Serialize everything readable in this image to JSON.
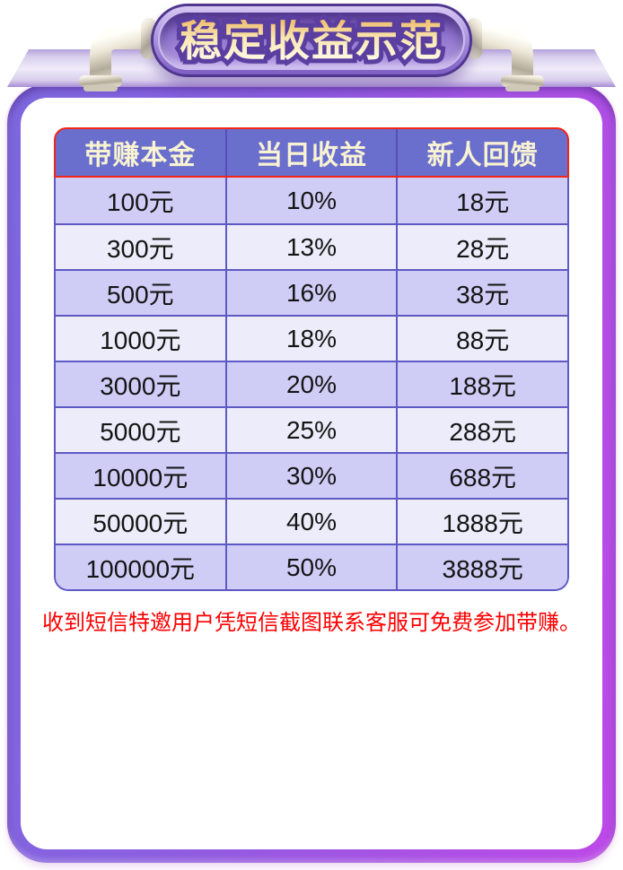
{
  "banner": {
    "title": "稳定收益示范"
  },
  "table": {
    "headers": [
      "带赚本金",
      "当日收益",
      "新人回馈"
    ],
    "rows": [
      [
        "100元",
        "10%",
        "18元"
      ],
      [
        "300元",
        "13%",
        "28元"
      ],
      [
        "500元",
        "16%",
        "38元"
      ],
      [
        "1000元",
        "18%",
        "88元"
      ],
      [
        "3000元",
        "20%",
        "188元"
      ],
      [
        "5000元",
        "25%",
        "288元"
      ],
      [
        "10000元",
        "30%",
        "688元"
      ],
      [
        "50000元",
        "40%",
        "1888元"
      ],
      [
        "100000元",
        "50%",
        "3888元"
      ]
    ]
  },
  "note": {
    "text": "收到短信特邀用户凭短信截图联系客服可免费参加带赚。"
  },
  "icons": {
    "left_pipe": "pipe-elbow-icon",
    "right_pipe": "pipe-elbow-icon"
  },
  "colors": {
    "frame_gradient_left": "#7d68de",
    "frame_gradient_right": "#bd49e8",
    "top_face_band": "#efebf8",
    "pill_border": "#50368f",
    "pill_fill_top": "#d6c8f1",
    "pill_fill_bottom": "#7e5ec2",
    "title_gold_top": "#f0bd6d",
    "title_gold_bottom": "#fffbe9",
    "title_outline": "#5a3fa0",
    "header_bg": "#6a6ecd",
    "header_text": "#f8f3d2",
    "header_border_red": "#f02718",
    "row_dark": "#cfcdf6",
    "row_light": "#ececfa",
    "cell_border": "#5e59c4",
    "cell_text": "#141414",
    "note_text": "#fe0000"
  }
}
